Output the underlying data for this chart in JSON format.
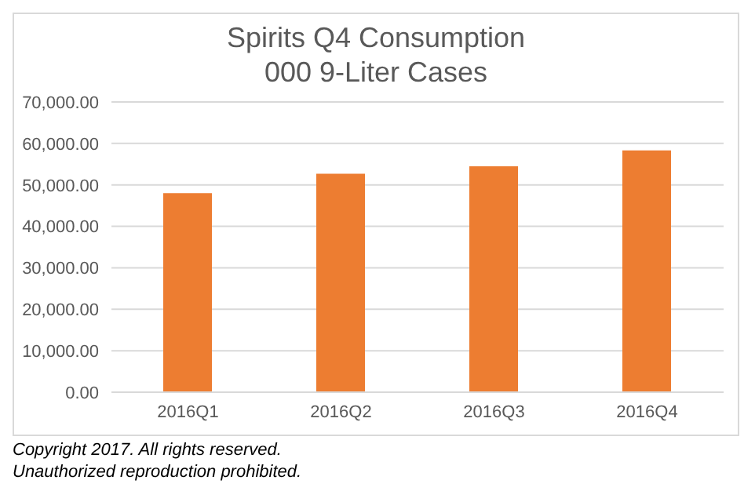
{
  "chart_data": {
    "type": "bar",
    "title": "Spirits Q4 Consumption",
    "subtitle": "000 9-Liter Cases",
    "categories": [
      "2016Q1",
      "2016Q2",
      "2016Q3",
      "2016Q4"
    ],
    "values": [
      48000,
      52700,
      54500,
      58300
    ],
    "color": "#ed7d31",
    "ylim": [
      0,
      70000
    ],
    "yticks": [
      {
        "value": 0,
        "label": "0.00"
      },
      {
        "value": 10000,
        "label": "10,000.00"
      },
      {
        "value": 20000,
        "label": "20,000.00"
      },
      {
        "value": 30000,
        "label": "30,000.00"
      },
      {
        "value": 40000,
        "label": "40,000.00"
      },
      {
        "value": 50000,
        "label": "50,000.00"
      },
      {
        "value": 60000,
        "label": "60,000.00"
      },
      {
        "value": 70000,
        "label": "70,000.00"
      }
    ],
    "grid": "y",
    "annotations": [
      "Copyright 2017.  All rights reserved.",
      "Unauthorized reproduction prohibited."
    ]
  }
}
